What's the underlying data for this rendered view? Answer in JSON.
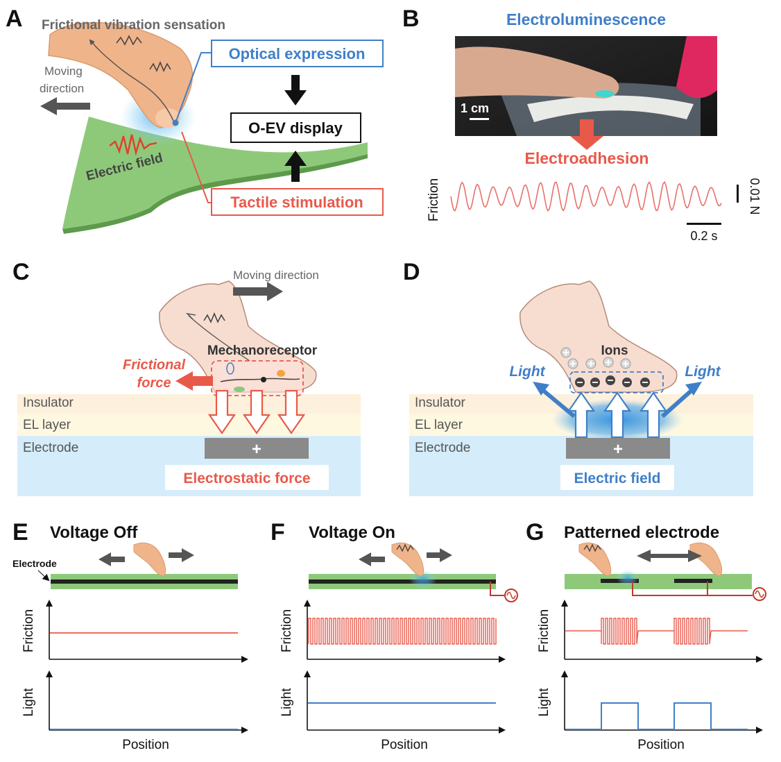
{
  "colors": {
    "blue": "#3f7fc8",
    "red": "#e8594a",
    "green": "#8ec97a",
    "dark_green": "#5d9a4b",
    "insulator": "#fdf0dc",
    "el_layer": "#fff8e1",
    "electrode_bg": "#d5ecfa",
    "gray_electrode": "#8a8a8a",
    "skin": "#f4cbb8"
  },
  "panels": {
    "A": {
      "label": "A",
      "title": "Frictional vibration sensation",
      "moving_direction": [
        "Moving",
        "direction"
      ],
      "optical": "Optical expression",
      "oev": "O-EV display",
      "electric_field": "Electric field",
      "tactile": "Tactile stimulation"
    },
    "B": {
      "label": "B",
      "electroluminescence": "Electroluminescence",
      "scale": "1 cm",
      "electroadhesion": "Electroadhesion",
      "friction": "Friction",
      "force_scale": "0.01 N",
      "time_scale": "0.2 s"
    },
    "C": {
      "label": "C",
      "moving_direction": "Moving direction",
      "mechanoreceptor": "Mechanoreceptor",
      "frictional_force": [
        "Frictional",
        "force"
      ],
      "insulator": "Insulator",
      "el_layer": "EL layer",
      "electrode": "Electrode",
      "plus": "+",
      "force": "Electrostatic force"
    },
    "D": {
      "label": "D",
      "ions": "Ions",
      "light_left": "Light",
      "light_right": "Light",
      "insulator": "Insulator",
      "el_layer": "EL layer",
      "electrode": "Electrode",
      "plus": "+",
      "field": "Electric field"
    },
    "E": {
      "label": "E",
      "title": "Voltage Off",
      "electrode": "Electrode",
      "friction": "Friction",
      "light": "Light",
      "position": "Position"
    },
    "F": {
      "label": "F",
      "title": "Voltage On",
      "friction": "Friction",
      "light": "Light",
      "position": "Position"
    },
    "G": {
      "label": "G",
      "title": "Patterned electrode",
      "friction": "Friction",
      "light": "Light",
      "position": "Position"
    }
  }
}
